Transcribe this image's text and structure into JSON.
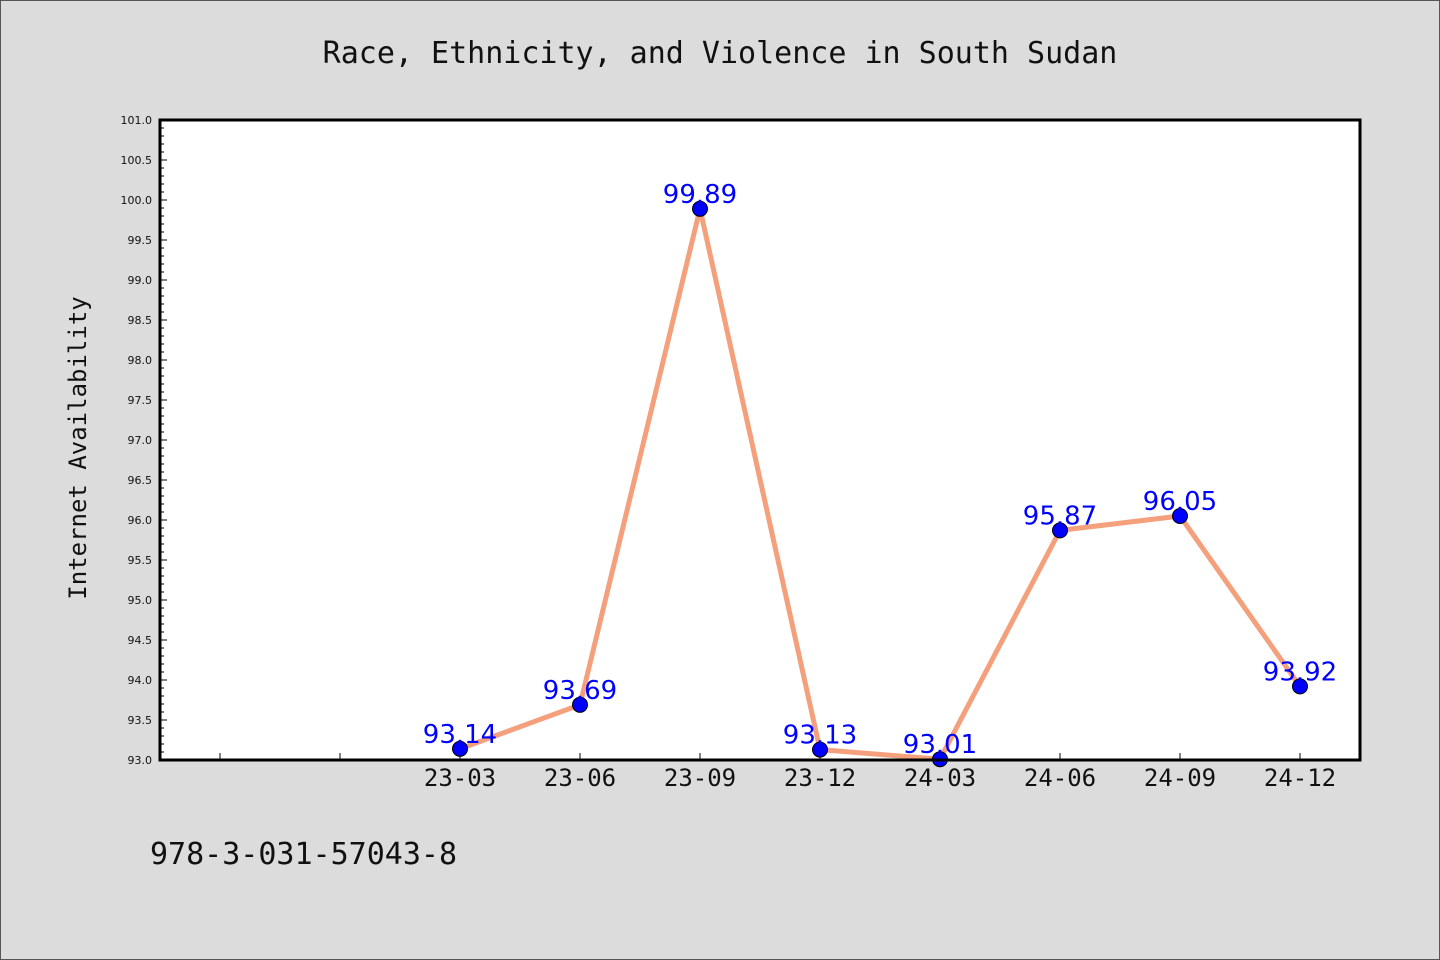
{
  "chart_data": {
    "type": "line",
    "title": "Race, Ethnicity, and Violence in South Sudan",
    "xlabel": "",
    "ylabel": "Internet Availability",
    "categories": [
      "",
      "",
      "23-03",
      "23-06",
      "23-09",
      "23-12",
      "24-03",
      "24-06",
      "24-09",
      "24-12"
    ],
    "series": [
      {
        "values": [
          null,
          null,
          93.14,
          93.69,
          99.89,
          93.13,
          93.01,
          95.87,
          96.05,
          93.92
        ]
      }
    ],
    "data_labels": [
      "",
      "",
      "93.14",
      "93.69",
      "99.89",
      "93.13",
      "93.01",
      "95.87",
      "96.05",
      "93.92"
    ],
    "ylim": [
      93.0,
      101.0
    ],
    "yticks": [
      "93.0",
      "93.5",
      "94.0",
      "94.5",
      "95.0",
      "95.5",
      "96.0",
      "96.5",
      "97.0",
      "97.5",
      "98.0",
      "98.5",
      "99.0",
      "99.5",
      "100.0",
      "100.5",
      "101.0"
    ],
    "grid": false,
    "legend": "none",
    "colors": {
      "line": "#f4a07c",
      "marker": "#0000ff",
      "data_label": "#0000ff",
      "background": "#dcdcdc",
      "plot_background": "#ffffff"
    },
    "footer_text": "978-3-031-57043-8"
  }
}
